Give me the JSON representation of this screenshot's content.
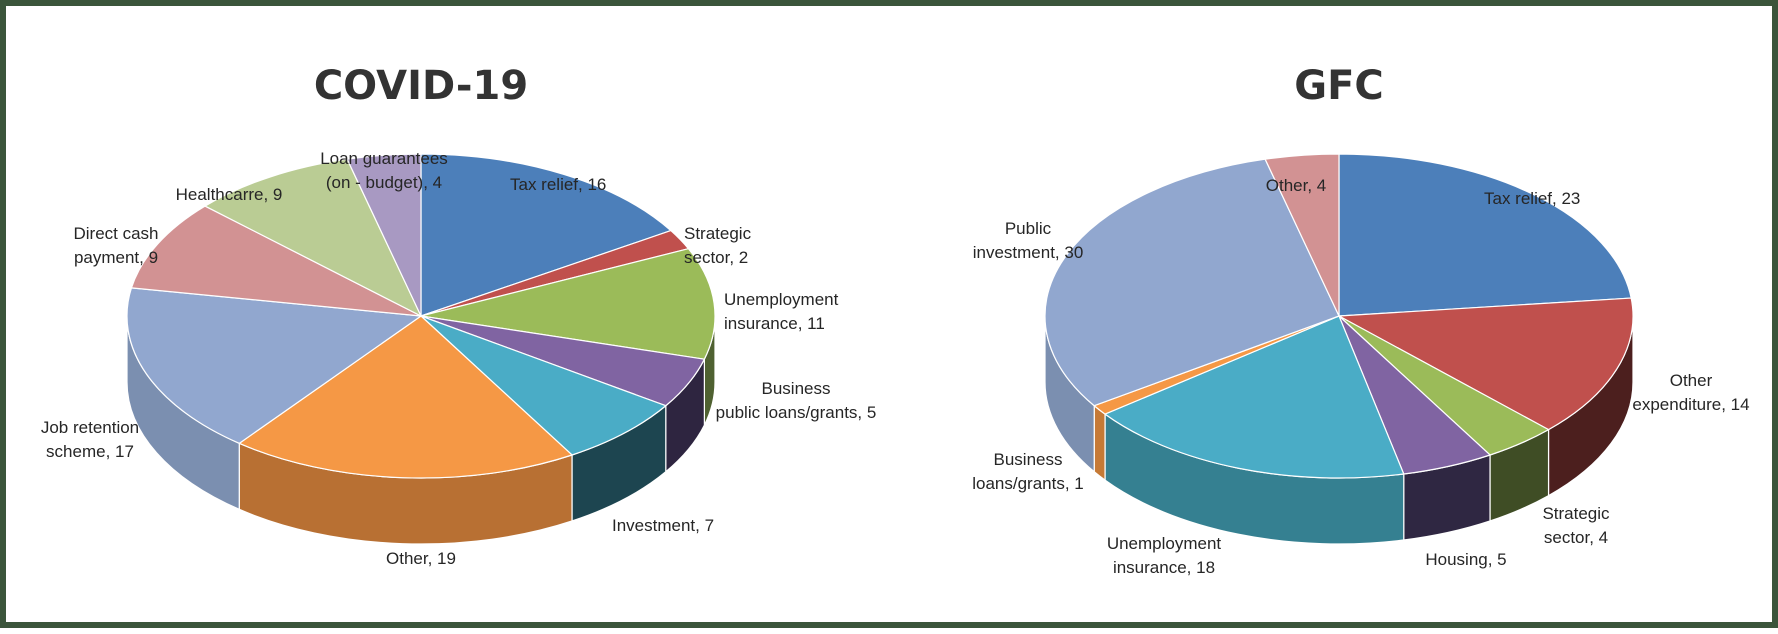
{
  "chart_data": [
    {
      "type": "pie",
      "title": "COVID-19",
      "slices": [
        {
          "label": [
            "Tax relief, 16"
          ],
          "value": 16,
          "color": "#4c7fba",
          "side": "#324f74"
        },
        {
          "label": [
            "Strategic",
            "sector, 2"
          ],
          "value": 2,
          "color": "#c0504d",
          "side": "#6e2b29"
        },
        {
          "label": [
            "Unemployment",
            "insurance, 11"
          ],
          "value": 11,
          "color": "#9bbb59",
          "side": "#4f6131"
        },
        {
          "label": [
            "Business",
            "public loans/grants, 5"
          ],
          "value": 5,
          "color": "#8064a2",
          "side": "#2e2540"
        },
        {
          "label": [
            "Investment, 7"
          ],
          "value": 7,
          "color": "#4aacc6",
          "side": "#1d4550"
        },
        {
          "label": [
            "Other, 19"
          ],
          "value": 19,
          "color": "#f59845",
          "side": "#b87033"
        },
        {
          "label": [
            "Job retention",
            "scheme, 17"
          ],
          "value": 17,
          "color": "#91a7cf",
          "side": "#7b8fb0"
        },
        {
          "label": [
            "Direct cash",
            "payment, 9"
          ],
          "value": 9,
          "color": "#d29293",
          "side": "#a97576"
        },
        {
          "label": [
            "Healthcarre, 9"
          ],
          "value": 9,
          "color": "#bacc94",
          "side": "#97a677"
        },
        {
          "label": [
            "Loan guarantees",
            "(on - budget), 4"
          ],
          "value": 4,
          "color": "#a899c2",
          "side": "#857a9b"
        }
      ]
    },
    {
      "type": "pie",
      "title": "GFC",
      "slices": [
        {
          "label": [
            "Tax relief, 23"
          ],
          "value": 23,
          "color": "#4c7fba",
          "side": "#324f74"
        },
        {
          "label": [
            "Other",
            "expenditure, 14"
          ],
          "value": 14,
          "color": "#c0504d",
          "side": "#4c1f1e"
        },
        {
          "label": [
            "Strategic",
            "sector, 4"
          ],
          "value": 4,
          "color": "#9bbb59",
          "side": "#3f4d25"
        },
        {
          "label": [
            "Housing, 5"
          ],
          "value": 5,
          "color": "#8064a2",
          "side": "#2f2742"
        },
        {
          "label": [
            "Unemployment",
            "insurance, 18"
          ],
          "value": 18,
          "color": "#4aacc6",
          "side": "#358091"
        },
        {
          "label": [
            "Business",
            "loans/grants, 1"
          ],
          "value": 1,
          "color": "#f59845",
          "side": "#c67a36"
        },
        {
          "label": [
            "Public",
            "investment, 30"
          ],
          "value": 30,
          "color": "#91a7cf",
          "side": "#7b8fb0"
        },
        {
          "label": [
            "Other, 4"
          ],
          "value": 4,
          "color": "#d29293",
          "side": "#a97576"
        }
      ]
    }
  ]
}
